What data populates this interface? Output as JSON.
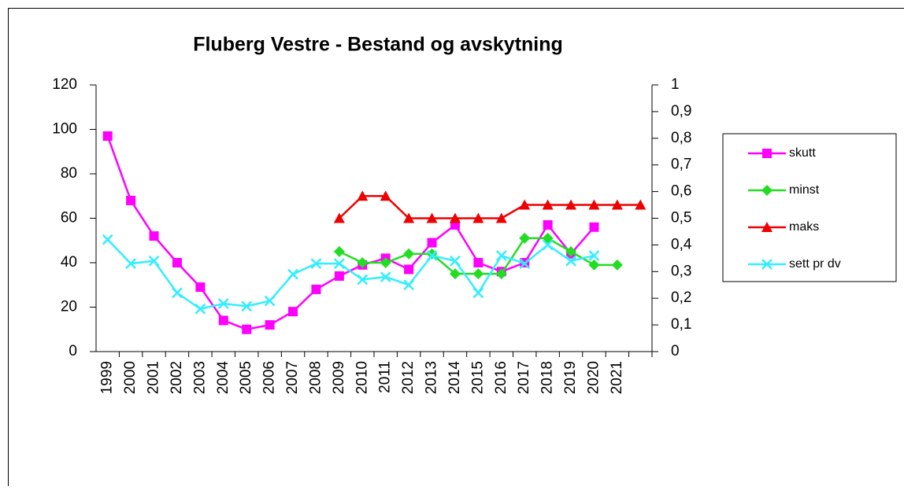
{
  "chart_data": {
    "type": "line",
    "title": "Fluberg Vestre - Bestand og avskytning",
    "categories": [
      "1999",
      "2000",
      "2001",
      "2002",
      "2003",
      "2004",
      "2005",
      "2006",
      "2007",
      "2008",
      "2009",
      "2010",
      "2011",
      "2012",
      "2013",
      "2014",
      "2015",
      "2016",
      "2017",
      "2018",
      "2019",
      "2020",
      "2021",
      null
    ],
    "ylim": [
      0,
      120
    ],
    "yticks": [
      0,
      20,
      40,
      60,
      80,
      100,
      120
    ],
    "y2lim": [
      0,
      1
    ],
    "y2ticks": [
      0,
      {
        "value": 0.1,
        "label": "0,1"
      },
      {
        "value": 0.2,
        "label": "0,2"
      },
      {
        "value": 0.3,
        "label": "0,3"
      },
      {
        "value": 0.4,
        "label": "0,4"
      },
      {
        "value": 0.5,
        "label": "0,5"
      },
      {
        "value": 0.6,
        "label": "0,6"
      },
      {
        "value": 0.7,
        "label": "0,7"
      },
      {
        "value": 0.8,
        "label": "0,8"
      },
      {
        "value": 0.9,
        "label": "0,9"
      },
      1
    ],
    "legend": "right",
    "series": [
      {
        "name": "skutt",
        "color": "#ff00ff",
        "marker": "square",
        "values": [
          97,
          68,
          52,
          40,
          29,
          14,
          10,
          12,
          18,
          28,
          34,
          39,
          42,
          37,
          49,
          57,
          40,
          36,
          40,
          57,
          44,
          56,
          null,
          null
        ]
      },
      {
        "name": "minst",
        "color": "#22dd22",
        "marker": "diamond",
        "values": [
          null,
          null,
          null,
          null,
          null,
          null,
          null,
          null,
          null,
          null,
          45,
          40,
          40,
          44,
          44,
          35,
          35,
          35,
          51,
          51,
          45,
          39,
          39,
          null
        ]
      },
      {
        "name": "maks",
        "color": "#ee0000",
        "marker": "triangle",
        "values": [
          null,
          null,
          null,
          null,
          null,
          null,
          null,
          null,
          null,
          null,
          60,
          70,
          70,
          60,
          60,
          60,
          60,
          60,
          66,
          66,
          66,
          66,
          66,
          66
        ]
      },
      {
        "name": "sett pr dv",
        "color": "#33eeff",
        "marker": "x",
        "axis": "y2",
        "values": [
          0.42,
          0.33,
          0.34,
          0.22,
          0.16,
          0.18,
          0.17,
          0.19,
          0.29,
          0.33,
          0.33,
          0.27,
          0.28,
          0.25,
          0.36,
          0.34,
          0.22,
          0.36,
          0.33,
          0.4,
          0.34,
          0.36,
          null,
          null
        ]
      }
    ]
  }
}
